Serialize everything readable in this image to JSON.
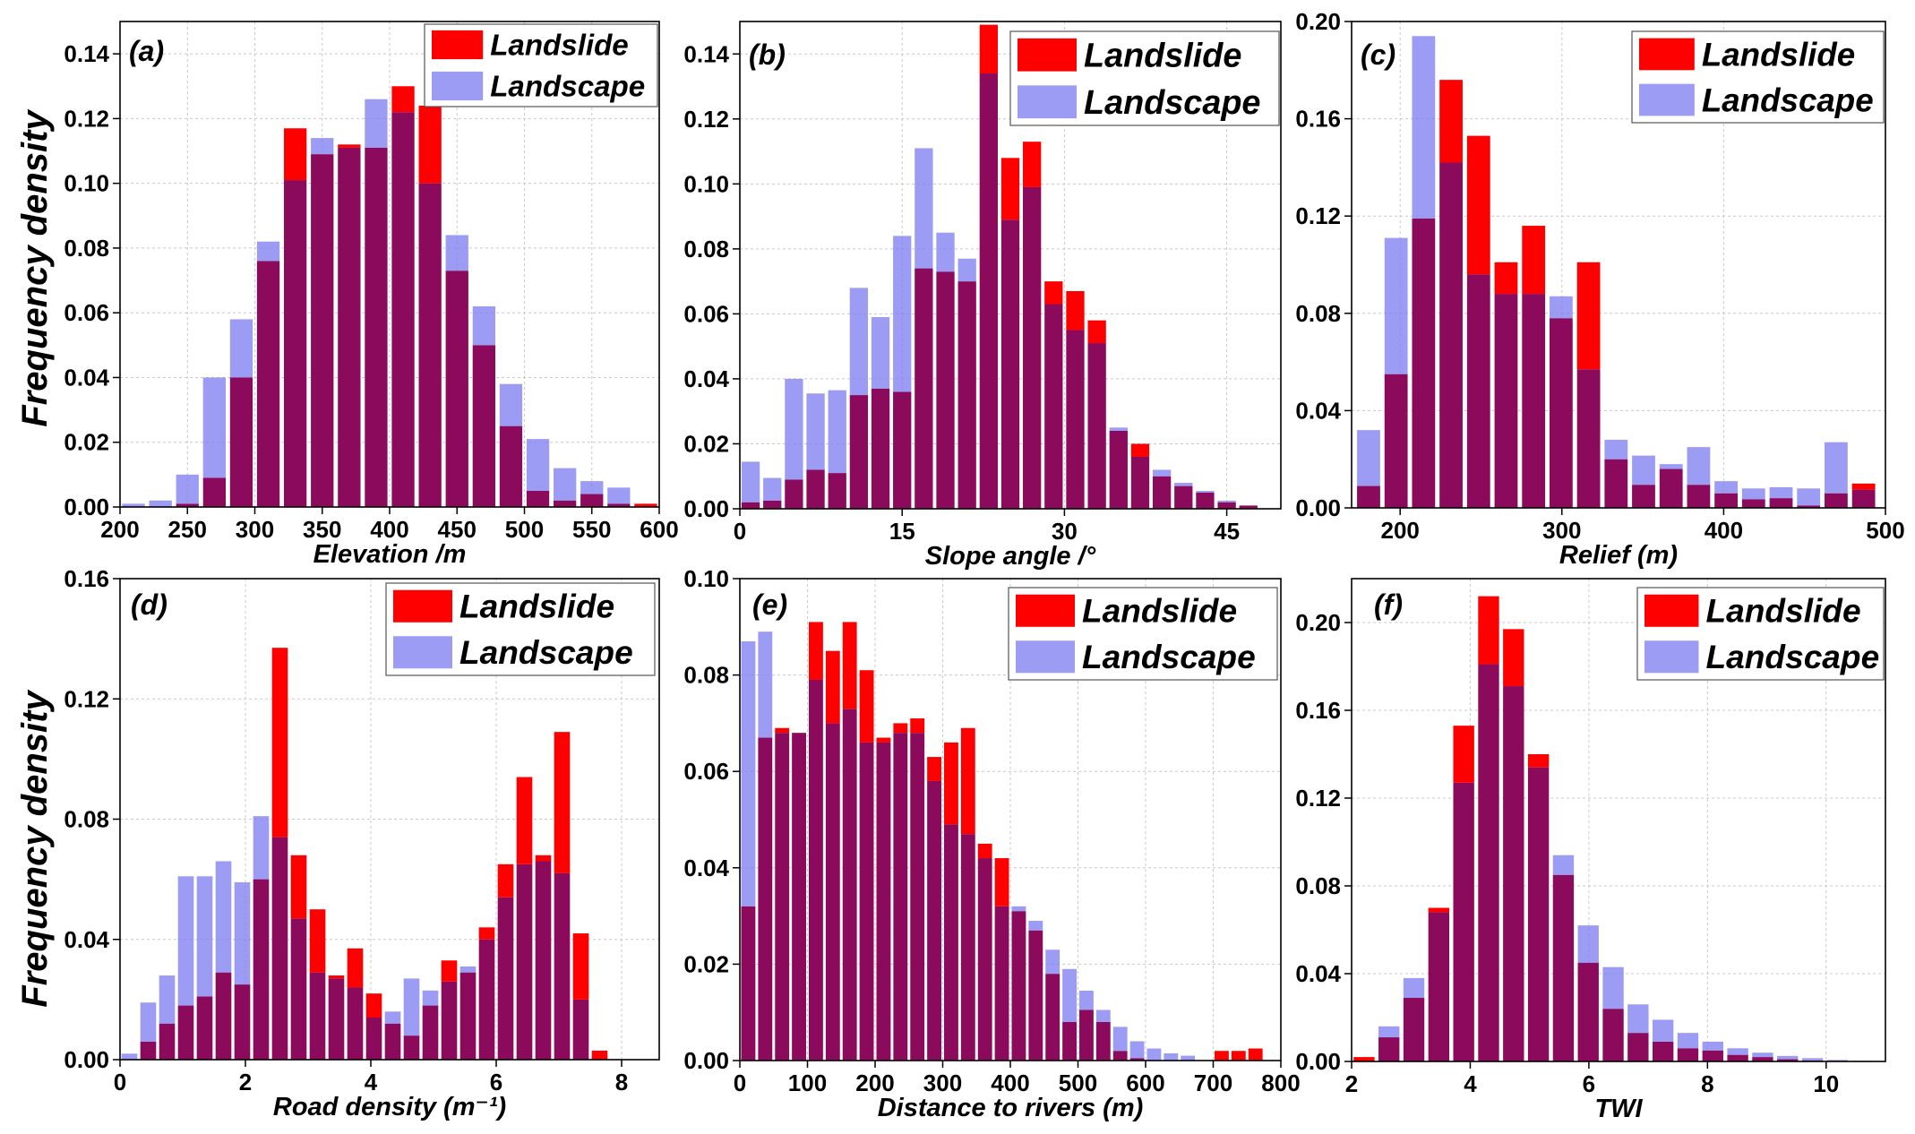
{
  "figure": {
    "y_axis_label": "Frequency density",
    "colors": {
      "landslide": "#ff0000",
      "landscape": "#7b7bf2",
      "overlap": "#8c0a5c"
    }
  },
  "chart_data": [
    {
      "type": "bar",
      "panel": "(a)",
      "xlabel": "Elevation /m",
      "ylabel": "Frequency density",
      "xlim": [
        200,
        600
      ],
      "ylim": [
        0,
        0.15
      ],
      "xticks": [
        "200",
        "250",
        "300",
        "350",
        "400",
        "450",
        "500",
        "550",
        "600"
      ],
      "yticks": [
        "0.00",
        "0.02",
        "0.04",
        "0.06",
        "0.08",
        "0.10",
        "0.12",
        "0.14"
      ],
      "bin_width": 20,
      "legend": [
        "Landslide",
        "Landscape"
      ],
      "legend_position": "top-right",
      "series": [
        {
          "name": "Landslide",
          "x": [
            200,
            220,
            240,
            260,
            280,
            300,
            320,
            340,
            360,
            380,
            400,
            420,
            440,
            460,
            480,
            500,
            520,
            540,
            560,
            580
          ],
          "values": [
            0,
            0,
            0.001,
            0.009,
            0.04,
            0.076,
            0.117,
            0.109,
            0.112,
            0.111,
            0.13,
            0.124,
            0.073,
            0.05,
            0.025,
            0.005,
            0.002,
            0.004,
            0.001,
            0.001
          ]
        },
        {
          "name": "Landscape",
          "x": [
            200,
            220,
            240,
            260,
            280,
            300,
            320,
            340,
            360,
            380,
            400,
            420,
            440,
            460,
            480,
            500,
            520,
            540,
            560,
            580
          ],
          "values": [
            0.001,
            0.002,
            0.01,
            0.04,
            0.058,
            0.082,
            0.101,
            0.114,
            0.111,
            0.126,
            0.122,
            0.1,
            0.084,
            0.062,
            0.038,
            0.021,
            0.012,
            0.008,
            0.006,
            0.0
          ]
        }
      ]
    },
    {
      "type": "bar",
      "panel": "(b)",
      "xlabel": "Slope angle /°",
      "ylabel": "",
      "xlim": [
        0,
        50
      ],
      "ylim": [
        0,
        0.15
      ],
      "xticks": [
        "0",
        "15",
        "30",
        "45"
      ],
      "xtick_values": [
        0,
        15,
        30,
        45
      ],
      "yticks": [
        "0.00",
        "0.02",
        "0.04",
        "0.06",
        "0.08",
        "0.10",
        "0.12",
        "0.14"
      ],
      "bin_width": 2,
      "legend": [
        "Landslide",
        "Landscape"
      ],
      "legend_position": "top-right",
      "series": [
        {
          "name": "Landslide",
          "x": [
            0,
            2,
            4,
            6,
            8,
            10,
            12,
            14,
            16,
            18,
            20,
            22,
            24,
            26,
            28,
            30,
            32,
            34,
            36,
            38,
            40,
            42,
            44,
            46
          ],
          "values": [
            0.002,
            0.0025,
            0.009,
            0.012,
            0.011,
            0.035,
            0.037,
            0.036,
            0.074,
            0.073,
            0.07,
            0.149,
            0.108,
            0.113,
            0.07,
            0.067,
            0.058,
            0.024,
            0.02,
            0.01,
            0.007,
            0.005,
            0.002,
            0.001
          ]
        },
        {
          "name": "Landscape",
          "x": [
            0,
            2,
            4,
            6,
            8,
            10,
            12,
            14,
            16,
            18,
            20,
            22,
            24,
            26,
            28,
            30,
            32,
            34,
            36,
            38,
            40,
            42,
            44,
            46
          ],
          "values": [
            0.0145,
            0.0095,
            0.04,
            0.0355,
            0.0365,
            0.068,
            0.059,
            0.084,
            0.111,
            0.085,
            0.077,
            0.134,
            0.089,
            0.099,
            0.063,
            0.055,
            0.051,
            0.025,
            0.016,
            0.012,
            0.008,
            0.0055,
            0.0025,
            0.001
          ]
        }
      ]
    },
    {
      "type": "bar",
      "panel": "(c)",
      "xlabel": "Relief (m)",
      "ylabel": "",
      "xlim": [
        170,
        500
      ],
      "ylim": [
        0,
        0.2
      ],
      "xticks": [
        "200",
        "300",
        "400",
        "500"
      ],
      "xtick_values": [
        200,
        300,
        400,
        500
      ],
      "yticks": [
        "0.00",
        "0.04",
        "0.08",
        "0.12",
        "0.16",
        "0.20"
      ],
      "bin_width": 17,
      "legend": [
        "Landslide",
        "Landscape"
      ],
      "legend_position": "top-right",
      "series": [
        {
          "name": "Landslide",
          "x": [
            172,
            189,
            206,
            223,
            240,
            257,
            274,
            291,
            308,
            325,
            342,
            359,
            376,
            393,
            410,
            427,
            444,
            461,
            478
          ],
          "values": [
            0.009,
            0.055,
            0.119,
            0.176,
            0.153,
            0.101,
            0.116,
            0.078,
            0.101,
            0.02,
            0.0095,
            0.016,
            0.0095,
            0.006,
            0.0035,
            0.004,
            0.001,
            0.006,
            0.01
          ]
        },
        {
          "name": "Landscape",
          "x": [
            172,
            189,
            206,
            223,
            240,
            257,
            274,
            291,
            308,
            325,
            342,
            359,
            376,
            393,
            410,
            427,
            444,
            461,
            478
          ],
          "values": [
            0.032,
            0.111,
            0.194,
            0.142,
            0.096,
            0.088,
            0.088,
            0.087,
            0.057,
            0.028,
            0.0215,
            0.018,
            0.025,
            0.011,
            0.008,
            0.0085,
            0.008,
            0.027,
            0.0075
          ]
        }
      ]
    },
    {
      "type": "bar",
      "panel": "(d)",
      "xlabel": "Road density (m⁻¹)",
      "ylabel": "Frequency density",
      "xlim": [
        0,
        8.6
      ],
      "ylim": [
        0,
        0.16
      ],
      "xticks": [
        "0",
        "2",
        "4",
        "6",
        "8"
      ],
      "xtick_values": [
        0,
        2,
        4,
        6,
        8
      ],
      "yticks": [
        "0.00",
        "0.04",
        "0.08",
        "0.12",
        "0.16"
      ],
      "bin_width": 0.3,
      "legend": [
        "Landslide",
        "Landscape"
      ],
      "legend_position": "top-right",
      "series": [
        {
          "name": "Landslide",
          "x": [
            0.0,
            0.3,
            0.6,
            0.9,
            1.2,
            1.5,
            1.8,
            2.1,
            2.4,
            2.7,
            3.0,
            3.3,
            3.6,
            3.9,
            4.2,
            4.5,
            4.8,
            5.1,
            5.4,
            5.7,
            6.0,
            6.3,
            6.6,
            6.9,
            7.2,
            7.5,
            7.8,
            8.1,
            8.4
          ],
          "values": [
            0,
            0.006,
            0.012,
            0.018,
            0.021,
            0.029,
            0.025,
            0.06,
            0.137,
            0.068,
            0.05,
            0.028,
            0.037,
            0.022,
            0.012,
            0.008,
            0.018,
            0.033,
            0.029,
            0.044,
            0.065,
            0.094,
            0.068,
            0.109,
            0.042,
            0.003,
            0,
            0,
            0
          ]
        },
        {
          "name": "Landscape",
          "x": [
            0.0,
            0.3,
            0.6,
            0.9,
            1.2,
            1.5,
            1.8,
            2.1,
            2.4,
            2.7,
            3.0,
            3.3,
            3.6,
            3.9,
            4.2,
            4.5,
            4.8,
            5.1,
            5.4,
            5.7,
            6.0,
            6.3,
            6.6,
            6.9,
            7.2,
            7.5,
            7.8,
            8.1,
            8.4
          ],
          "values": [
            0.002,
            0.019,
            0.028,
            0.061,
            0.061,
            0.066,
            0.059,
            0.081,
            0.074,
            0.047,
            0.029,
            0.027,
            0.024,
            0.014,
            0.016,
            0.027,
            0.023,
            0.026,
            0.031,
            0.04,
            0.054,
            0.065,
            0.066,
            0.062,
            0.02,
            0.0,
            0,
            0,
            0
          ]
        }
      ]
    },
    {
      "type": "bar",
      "panel": "(e)",
      "xlabel": "Distance to rivers (m)",
      "ylabel": "",
      "xlim": [
        0,
        800
      ],
      "ylim": [
        0,
        0.1
      ],
      "xticks": [
        "0",
        "100",
        "200",
        "300",
        "400",
        "500",
        "600",
        "700",
        "800"
      ],
      "yticks": [
        "0.00",
        "0.02",
        "0.04",
        "0.06",
        "0.08",
        "0.10"
      ],
      "bin_width": 25,
      "legend": [
        "Landslide",
        "Landscape"
      ],
      "legend_position": "top-right",
      "series": [
        {
          "name": "Landslide",
          "x": [
            0,
            25,
            50,
            75,
            100,
            125,
            150,
            175,
            200,
            225,
            250,
            275,
            300,
            325,
            350,
            375,
            400,
            425,
            450,
            475,
            500,
            525,
            550,
            575,
            600,
            625,
            650,
            675,
            700,
            725,
            750
          ],
          "values": [
            0.032,
            0.067,
            0.069,
            0.068,
            0.091,
            0.085,
            0.091,
            0.081,
            0.067,
            0.07,
            0.071,
            0.063,
            0.066,
            0.069,
            0.045,
            0.042,
            0.031,
            0.027,
            0.018,
            0.008,
            0.0105,
            0.008,
            0.002,
            0.0005,
            0,
            0,
            0,
            0,
            0.002,
            0.002,
            0.0025
          ]
        },
        {
          "name": "Landscape",
          "x": [
            0,
            25,
            50,
            75,
            100,
            125,
            150,
            175,
            200,
            225,
            250,
            275,
            300,
            325,
            350,
            375,
            400,
            425,
            450,
            475,
            500,
            525,
            550,
            575,
            600,
            625,
            650,
            675,
            700,
            725,
            750
          ],
          "values": [
            0.087,
            0.089,
            0.068,
            0.068,
            0.079,
            0.07,
            0.073,
            0.066,
            0.066,
            0.068,
            0.068,
            0.058,
            0.049,
            0.047,
            0.042,
            0.032,
            0.032,
            0.029,
            0.023,
            0.019,
            0.0145,
            0.0105,
            0.007,
            0.004,
            0.0025,
            0.0015,
            0.001,
            0,
            0,
            0,
            0
          ]
        }
      ]
    },
    {
      "type": "bar",
      "panel": "(f)",
      "xlabel": "TWI",
      "ylabel": "",
      "xlim": [
        2,
        11
      ],
      "ylim": [
        0,
        0.22
      ],
      "xticks": [
        "2",
        "4",
        "6",
        "8",
        "10"
      ],
      "xtick_values": [
        2,
        4,
        6,
        8,
        10
      ],
      "yticks": [
        "0.00",
        "0.04",
        "0.08",
        "0.12",
        "0.16",
        "0.20"
      ],
      "bin_width": 0.42,
      "legend": [
        "Landslide",
        "Landscape"
      ],
      "legend_position": "top-right",
      "series": [
        {
          "name": "Landslide",
          "x": [
            2.0,
            2.42,
            2.84,
            3.26,
            3.68,
            4.1,
            4.52,
            4.94,
            5.36,
            5.78,
            6.2,
            6.62,
            7.04,
            7.46,
            7.88,
            8.3,
            8.72,
            9.14,
            9.56,
            9.98,
            10.4
          ],
          "values": [
            0.002,
            0.011,
            0.029,
            0.07,
            0.153,
            0.212,
            0.197,
            0.14,
            0.085,
            0.045,
            0.024,
            0.013,
            0.009,
            0.006,
            0.005,
            0.003,
            0.002,
            0.001,
            0.0005,
            0,
            0
          ]
        },
        {
          "name": "Landscape",
          "x": [
            2.0,
            2.42,
            2.84,
            3.26,
            3.68,
            4.1,
            4.52,
            4.94,
            5.36,
            5.78,
            6.2,
            6.62,
            7.04,
            7.46,
            7.88,
            8.3,
            8.72,
            9.14,
            9.56,
            9.98,
            10.4
          ],
          "values": [
            0,
            0.016,
            0.038,
            0.068,
            0.127,
            0.181,
            0.171,
            0.134,
            0.094,
            0.062,
            0.043,
            0.026,
            0.019,
            0.013,
            0.009,
            0.006,
            0.004,
            0.0025,
            0.0015,
            0.0007,
            0.0003
          ]
        }
      ]
    }
  ]
}
